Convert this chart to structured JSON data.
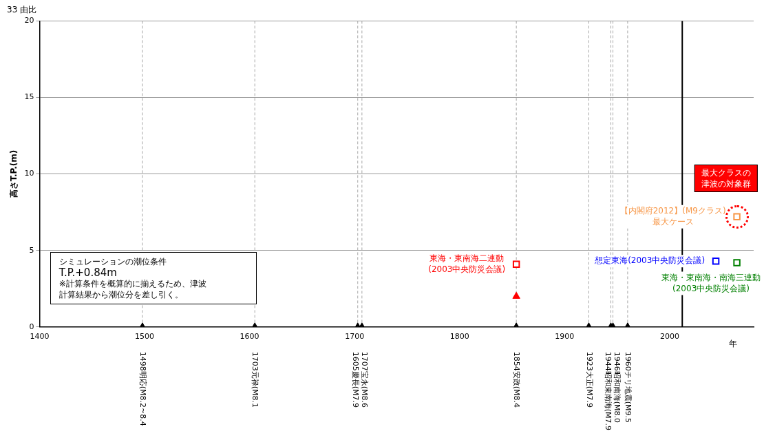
{
  "chart_data": {
    "type": "scatter",
    "title": "33 由比",
    "xlabel": "年",
    "ylabel": "高さT.P.(m)",
    "xlim": [
      1400,
      2080
    ],
    "xticks": [
      1400,
      1500,
      1600,
      1700,
      1800,
      1900,
      2000
    ],
    "ylim": [
      0,
      20
    ],
    "yticks": [
      0,
      5,
      10,
      15,
      20
    ],
    "grid": "y",
    "legend": false,
    "annotations": [
      "シミュレーションの潮位条件",
      "T.P.+0.84m",
      "※計算条件を概算的に揃えるため、津波計算結果から潮位分を差し引く。",
      "最大クラスの津波の対象群"
    ],
    "ref_lines": [
      {
        "axis": "x",
        "value": 1498,
        "color": "#a6a6a6",
        "line_style": "dashed"
      },
      {
        "axis": "x",
        "value": 1605,
        "color": "#a6a6a6",
        "line_style": "dashed"
      },
      {
        "axis": "x",
        "value": 1703,
        "color": "#a6a6a6",
        "line_style": "dashed"
      },
      {
        "axis": "x",
        "value": 1707,
        "color": "#a6a6a6",
        "line_style": "dashed"
      },
      {
        "axis": "x",
        "value": 1854,
        "color": "#a6a6a6",
        "line_style": "dashed"
      },
      {
        "axis": "x",
        "value": 1923,
        "color": "#a6a6a6",
        "line_style": "dashed"
      },
      {
        "axis": "x",
        "value": 1944,
        "color": "#a6a6a6",
        "line_style": "dashed"
      },
      {
        "axis": "x",
        "value": 1946,
        "color": "#a6a6a6",
        "line_style": "dashed"
      },
      {
        "axis": "x",
        "value": 1960,
        "color": "#a6a6a6",
        "line_style": "dashed"
      },
      {
        "axis": "x",
        "value": 2012,
        "color": "#000000",
        "line_style": "solid"
      }
    ],
    "series": [
      {
        "type": "scatter",
        "color": "#000000",
        "marker": "triangle",
        "x": [
          1498,
          1605,
          1703,
          1707,
          1854,
          1923,
          1944,
          1946,
          1960
        ],
        "values": [
          0,
          0,
          0,
          0,
          0,
          0,
          0,
          0,
          0
        ],
        "value_labels": [
          "1498明応(M8.2~8.4",
          "1703元禄(M8.1",
          "1605慶長(M7.9",
          "1707宝永(M8.6",
          "1854安政(M8.4",
          "1923大正(M7.9",
          "1944昭和東南海(M7.9",
          "1946昭和南海(M8.0",
          "1960チリ地震(M9.5"
        ]
      },
      {
        "type": "scatter",
        "color": "#ff0000",
        "marker": "triangle",
        "x": [
          1854
        ],
        "values": [
          2.0
        ]
      },
      {
        "type": "scatter",
        "name": "東海・東南海二連動\n(2003中央防災会議)",
        "color": "#ff0000",
        "marker": "square",
        "x": [
          1854
        ],
        "values": [
          4.1
        ]
      },
      {
        "type": "scatter",
        "name": "想定東海(2003中央防災会議)",
        "color": "#0000ff",
        "marker": "square",
        "x": [
          2044
        ],
        "values": [
          4.3
        ]
      },
      {
        "type": "scatter",
        "name": "東海・東南海・南海三連動\n(2003中央防災会議)",
        "color": "#008000",
        "marker": "square",
        "x": [
          2064
        ],
        "values": [
          4.2
        ]
      },
      {
        "type": "scatter",
        "name": "【内閣府2012】(M9クラス)\n最大ケース",
        "color": "#f79646",
        "marker": "square",
        "x": [
          2064
        ],
        "values": [
          7.2
        ]
      }
    ]
  }
}
